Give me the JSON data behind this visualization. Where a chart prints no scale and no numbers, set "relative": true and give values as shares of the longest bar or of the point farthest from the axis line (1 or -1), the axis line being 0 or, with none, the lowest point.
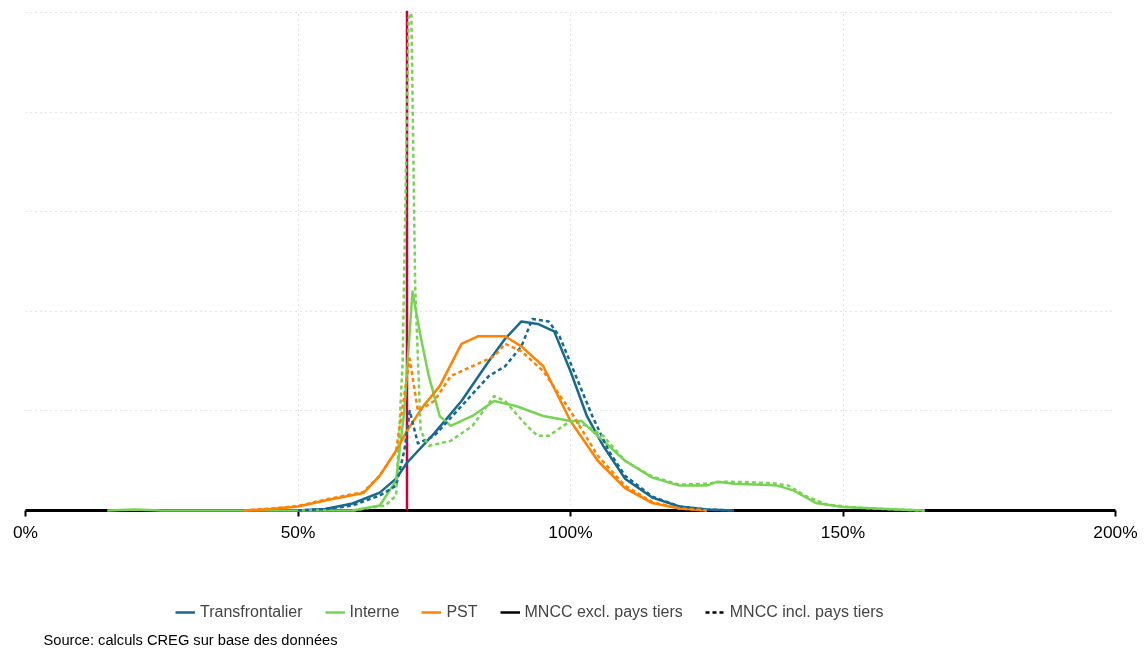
{
  "chart_data": {
    "type": "line",
    "relative": true,
    "xlim": [
      0,
      200
    ],
    "xticks": [
      {
        "value": 0,
        "label": "0%"
      },
      {
        "value": 50,
        "label": "50%"
      },
      {
        "value": 100,
        "label": "100%"
      },
      {
        "value": 150,
        "label": "150%"
      },
      {
        "value": 200,
        "label": "200%"
      }
    ],
    "grid": true,
    "legend": "bottom",
    "series": [
      {
        "name": "Transfrontalier",
        "color": "#16698f",
        "line_style": "solid",
        "x": [
          50,
          55,
          60,
          65,
          68,
          70,
          75,
          80,
          85,
          88,
          91,
          94,
          97,
          100,
          103,
          106,
          110,
          115,
          120,
          125,
          130
        ],
        "values": [
          0,
          0.003,
          0.014,
          0.036,
          0.064,
          0.096,
          0.155,
          0.22,
          0.3,
          0.345,
          0.38,
          0.375,
          0.36,
          0.28,
          0.19,
          0.13,
          0.064,
          0.026,
          0.008,
          0.002,
          0
        ]
      },
      {
        "name": "Interne",
        "color": "#77d353",
        "line_style": "solid",
        "x": [
          15,
          20,
          25,
          60,
          65,
          68,
          69.5,
          71,
          72.5,
          74,
          76,
          78,
          82,
          86,
          90,
          95,
          100,
          102,
          105,
          110,
          115,
          120,
          125,
          127,
          130,
          135,
          138,
          141,
          145,
          150,
          160,
          165
        ],
        "values": [
          0,
          0.002,
          0,
          0,
          0.01,
          0.06,
          0.2,
          0.44,
          0.35,
          0.27,
          0.19,
          0.17,
          0.19,
          0.22,
          0.21,
          0.19,
          0.18,
          0.18,
          0.15,
          0.1,
          0.066,
          0.05,
          0.05,
          0.058,
          0.054,
          0.052,
          0.05,
          0.04,
          0.015,
          0.007,
          0.002,
          0
        ]
      },
      {
        "name": "PST",
        "color": "#ff8200",
        "line_style": "solid",
        "x": [
          40,
          45,
          50,
          55,
          62,
          65,
          68,
          70,
          73,
          76,
          80,
          83,
          86,
          88,
          91,
          95,
          100,
          105,
          110,
          115,
          120,
          125
        ],
        "values": [
          0,
          0.003,
          0.008,
          0.02,
          0.035,
          0.07,
          0.12,
          0.16,
          0.21,
          0.25,
          0.335,
          0.35,
          0.35,
          0.35,
          0.33,
          0.29,
          0.18,
          0.1,
          0.045,
          0.015,
          0.004,
          0
        ]
      },
      {
        "color": "#16698f",
        "line_style": "dashed",
        "x": [
          50,
          55,
          60,
          65,
          68,
          69.5,
          70.5,
          72,
          75,
          80,
          85,
          88,
          91,
          93,
          96,
          98,
          101,
          104,
          107,
          110,
          115,
          120,
          125,
          130
        ],
        "values": [
          0,
          0.003,
          0.01,
          0.03,
          0.05,
          0.12,
          0.2,
          0.135,
          0.15,
          0.21,
          0.27,
          0.29,
          0.33,
          0.385,
          0.38,
          0.35,
          0.27,
          0.19,
          0.12,
          0.07,
          0.028,
          0.008,
          0.002,
          0
        ]
      },
      {
        "color": "#77d353",
        "line_style": "dashed",
        "x": [
          60,
          66,
          68,
          69.2,
          70.3,
          70.8,
          71.5,
          72.5,
          74,
          78,
          82,
          86,
          88,
          92,
          94,
          96,
          100,
          103,
          106,
          110,
          115,
          120,
          125,
          128,
          132,
          137,
          140,
          143,
          147,
          152,
          160,
          165
        ],
        "values": [
          0,
          0.01,
          0.03,
          0.3,
          0.99,
          1,
          0.45,
          0.16,
          0.13,
          0.14,
          0.17,
          0.23,
          0.22,
          0.17,
          0.15,
          0.15,
          0.18,
          0.17,
          0.15,
          0.1,
          0.068,
          0.052,
          0.054,
          0.058,
          0.057,
          0.055,
          0.05,
          0.03,
          0.012,
          0.006,
          0.002,
          0
        ]
      },
      {
        "color": "#ff8200",
        "line_style": "dashed",
        "x": [
          40,
          45,
          50,
          55,
          62,
          65,
          68,
          70.5,
          72,
          75,
          78,
          82,
          86,
          88,
          91,
          95,
          100,
          105,
          110,
          115,
          120,
          125
        ],
        "values": [
          0,
          0.004,
          0.009,
          0.022,
          0.037,
          0.07,
          0.12,
          0.305,
          0.2,
          0.22,
          0.27,
          0.29,
          0.31,
          0.335,
          0.32,
          0.28,
          0.2,
          0.11,
          0.05,
          0.017,
          0.004,
          0
        ]
      }
    ],
    "ref_lines": [
      {
        "axis": "x",
        "value": 70,
        "color": "#c8003c"
      }
    ],
    "annotations": [
      "MNCC excl. pays tiers",
      "MNCC incl. pays tiers",
      "Source: calculs CREG sur base des données"
    ]
  }
}
